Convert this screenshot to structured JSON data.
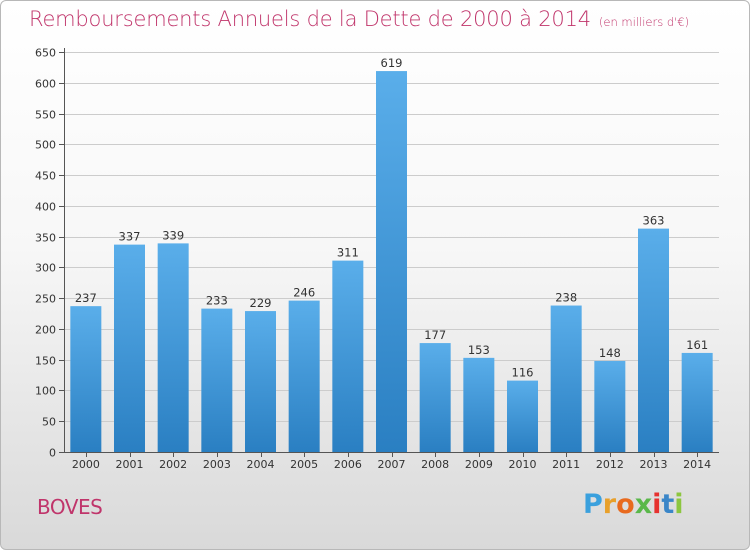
{
  "header": {
    "title": "Remboursements Annuels de la Dette de 2000 à 2014",
    "unit": "(en milliers d'€)"
  },
  "footer": {
    "commune": "BOVES",
    "logo_letters": [
      "P",
      "r",
      "o",
      "x",
      "i",
      "t",
      "i"
    ],
    "logo_colors": [
      "#3aa0dd",
      "#e8a02a",
      "#e86a1e",
      "#5ab84a",
      "#e6322f",
      "#3a86c8",
      "#8cc63f"
    ]
  },
  "colors": {
    "title": "#c0356b",
    "bar_light": "#5aaeea",
    "bar_dark": "#2a7fc2",
    "grid": "#cccccc"
  },
  "chart_data": {
    "type": "bar",
    "title": "Remboursements Annuels de la Dette de 2000 à 2014",
    "subtitle": "(en milliers d'€)",
    "categories": [
      "2000",
      "2001",
      "2002",
      "2003",
      "2004",
      "2005",
      "2006",
      "2007",
      "2008",
      "2009",
      "2010",
      "2011",
      "2012",
      "2013",
      "2014"
    ],
    "values": [
      237,
      337,
      339,
      233,
      229,
      246,
      311,
      619,
      177,
      153,
      116,
      238,
      148,
      363,
      161
    ],
    "ylim": [
      0,
      650
    ],
    "yticks": [
      0,
      50,
      100,
      150,
      200,
      250,
      300,
      350,
      400,
      450,
      500,
      550,
      600,
      650
    ],
    "grid": true,
    "legend": "none"
  }
}
